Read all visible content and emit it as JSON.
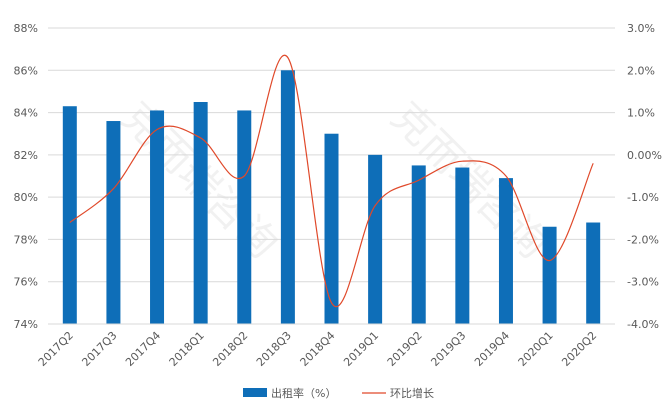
{
  "chart_data": {
    "type": "bar",
    "categories": [
      "2017Q2",
      "2017Q3",
      "2017Q4",
      "2018Q1",
      "2018Q2",
      "2018Q3",
      "2018Q4",
      "2019Q1",
      "2019Q2",
      "2019Q3",
      "2019Q4",
      "2020Q1",
      "2020Q2"
    ],
    "series": [
      {
        "name": "出租率（%）",
        "type": "bar",
        "axis": "left",
        "color": "#0e6eb8",
        "values": [
          84.3,
          83.6,
          84.1,
          84.5,
          84.1,
          86.0,
          83.0,
          82.0,
          81.5,
          81.4,
          80.9,
          78.6,
          78.8
        ]
      },
      {
        "name": "环比增长",
        "type": "line",
        "axis": "right",
        "color": "#e0492a",
        "values": [
          -1.6,
          -0.8,
          0.6,
          0.4,
          -0.5,
          2.3,
          -3.5,
          -1.2,
          -0.6,
          -0.15,
          -0.5,
          -2.5,
          -0.2
        ]
      }
    ],
    "left_axis": {
      "min": 74,
      "max": 88,
      "step": 2,
      "tick_labels": [
        "74%",
        "76%",
        "78%",
        "80%",
        "82%",
        "84%",
        "86%",
        "88%"
      ]
    },
    "right_axis": {
      "min": -4.0,
      "max": 3.0,
      "step": 1.0,
      "tick_labels": [
        "-4.0%",
        "-3.0%",
        "-2.0%",
        "-1.0%",
        "0.00%",
        "1.0%",
        "2.0%",
        "3.0%"
      ]
    },
    "grid": true,
    "legend": "bottom",
    "watermark": "克而瑞咨询"
  }
}
